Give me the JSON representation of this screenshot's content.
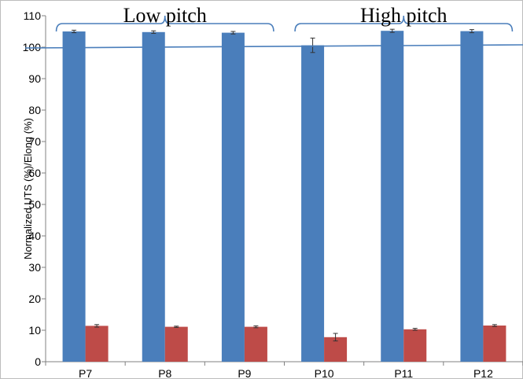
{
  "chart_data": {
    "type": "bar",
    "categories": [
      "P7",
      "P8",
      "P9",
      "P10",
      "P11",
      "P12"
    ],
    "series": [
      {
        "values": [
          105.0,
          104.8,
          104.6,
          100.6,
          105.2,
          105.1
        ],
        "errors": [
          0.4,
          0.4,
          0.4,
          2.3,
          0.5,
          0.5
        ],
        "color": "#4a7ebb"
      },
      {
        "values": [
          11.4,
          11.1,
          11.1,
          7.8,
          10.3,
          11.5
        ],
        "errors": [
          0.4,
          0.2,
          0.3,
          1.2,
          0.3,
          0.3
        ],
        "color": "#be4b48"
      }
    ],
    "ylabel": "Normalized UTS (%)/Elong (%)",
    "ylim": [
      0,
      110
    ],
    "yticks": [
      0,
      10,
      20,
      30,
      40,
      50,
      60,
      70,
      80,
      90,
      100,
      110
    ],
    "reference_line": {
      "y": 100,
      "color": "#4a7ebb"
    },
    "annotations": {
      "low_pitch": {
        "label": "Low pitch",
        "from_category": "P7",
        "to_category": "P9"
      },
      "high_pitch": {
        "label": "High pitch",
        "from_category": "P10",
        "to_category": "P12"
      }
    },
    "grid": false,
    "legend": "none"
  }
}
